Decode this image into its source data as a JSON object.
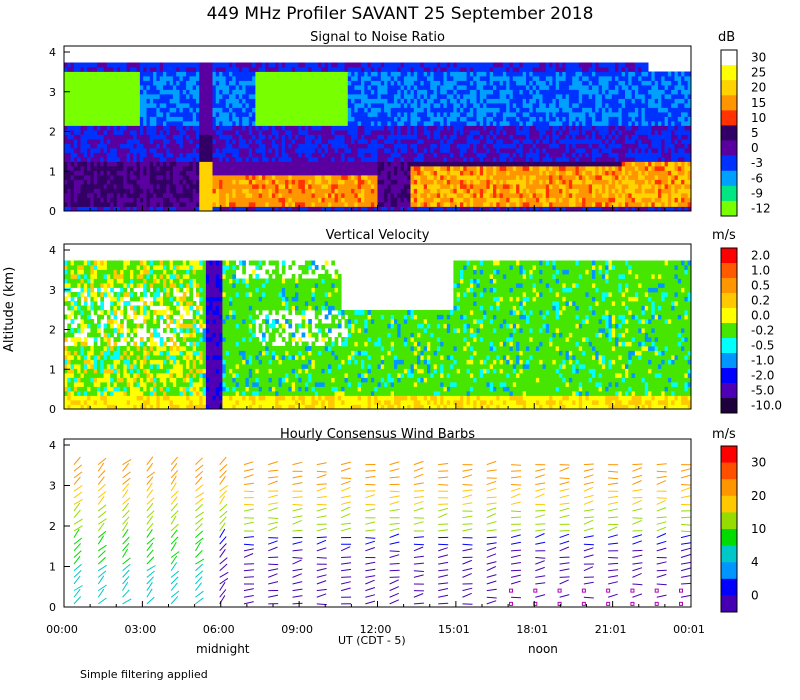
{
  "title": "449 MHz Profiler SAVANT 25 September 2018",
  "ylabel": "Altitude (km)",
  "xlabel": "UT  (CDT - 5)",
  "x_ticks": [
    "00:00",
    "03:00",
    "06:00",
    "09:00",
    "12:00",
    "15:01",
    "18:01",
    "21:01",
    "00:01"
  ],
  "local_markers": {
    "midnight": "midnight",
    "noon": "noon"
  },
  "footnote": "Simple filtering applied",
  "chart_data": [
    {
      "type": "heatmap",
      "title": "Signal to Noise Ratio",
      "unit": "dB",
      "ylim": [
        0,
        4
      ],
      "y_ticks": [
        "0",
        "1",
        "2",
        "3",
        "4"
      ],
      "colorbar": {
        "labels": [
          "30",
          "25",
          "20",
          "15",
          "10",
          "5",
          "0",
          "-3",
          "-6",
          "-9",
          "-12"
        ],
        "colors": [
          "#ffffff",
          "#ffff00",
          "#ffd200",
          "#ff9600",
          "#ff3200",
          "#320064",
          "#5a00a0",
          "#0032ff",
          "#00a0ff",
          "#00e682",
          "#78ff00"
        ]
      }
    },
    {
      "type": "heatmap",
      "title": "Vertical Velocity",
      "unit": "m/s",
      "ylim": [
        0,
        4
      ],
      "y_ticks": [
        "0",
        "1",
        "2",
        "3",
        "4"
      ],
      "colorbar": {
        "labels": [
          "2.0",
          "1.0",
          "0.5",
          "0.2",
          "0.0",
          "-0.2",
          "-0.5",
          "-1.0",
          "-2.0",
          "-5.0",
          "-10.0"
        ],
        "colors": [
          "#ff0000",
          "#ff5a00",
          "#ff9600",
          "#ffc800",
          "#ffff00",
          "#46e600",
          "#00ffff",
          "#0096ff",
          "#0000ff",
          "#5000b4",
          "#1e003c"
        ]
      }
    },
    {
      "type": "wind-barbs",
      "title": "Hourly Consensus Wind Barbs",
      "unit": "m/s",
      "ylim": [
        0,
        4
      ],
      "y_ticks": [
        "0",
        "1",
        "2",
        "3",
        "4"
      ],
      "colorbar": {
        "labels": [
          "30",
          "20",
          "10",
          "4",
          "0"
        ],
        "colors": [
          "#ff0000",
          "#ff5000",
          "#ff9600",
          "#ffc800",
          "#96dc00",
          "#00dc00",
          "#00c8c8",
          "#0096ff",
          "#0000ff",
          "#4600b4"
        ]
      }
    }
  ]
}
